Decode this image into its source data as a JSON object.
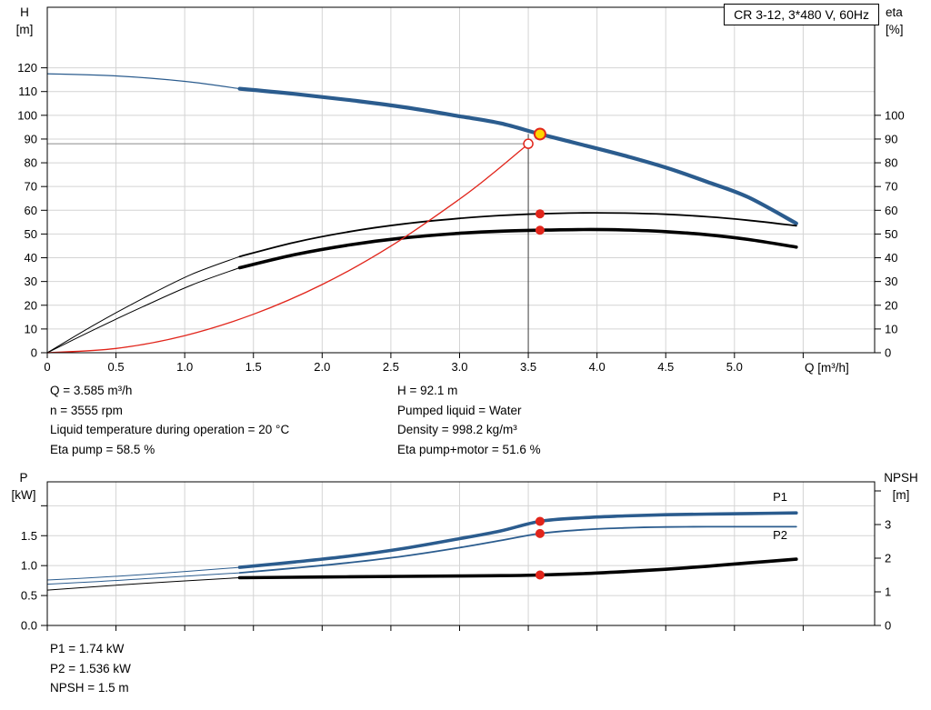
{
  "header": {
    "title_box": "CR 3-12, 3*480 V, 60Hz"
  },
  "colors": {
    "blue": "#2b5c8e",
    "red": "#e1251b",
    "black": "#000000",
    "grid": "#d4d4d4",
    "frame": "#000000",
    "guide_gray": "#8a8a8a",
    "guide_dark": "#404040",
    "yellow": "#ffd500",
    "white": "#ffffff"
  },
  "readouts_top": {
    "left": [
      "Q = 3.585 m³/h",
      "n = 3555 rpm",
      "Liquid temperature during operation = 20 °C",
      "Eta pump = 58.5 %"
    ],
    "right": [
      "H = 92.1 m",
      "Pumped liquid = Water",
      "Density = 998.2 kg/m³",
      "Eta pump+motor = 51.6 %"
    ]
  },
  "readouts_bottom": [
    "P1 = 1.74 kW",
    "P2 = 1.536 kW",
    "NPSH = 1.5 m"
  ],
  "chart_data": [
    {
      "name": "hq-eta-chart",
      "type": "line",
      "x_axis": {
        "title": "Q [m³/h]",
        "min": 0,
        "max": 6.02,
        "ticks": [
          {
            "v": 0,
            "label": "0"
          },
          {
            "v": 0.5,
            "label": "0.5"
          },
          {
            "v": 1,
            "label": "1.0"
          },
          {
            "v": 1.5,
            "label": "1.5"
          },
          {
            "v": 2,
            "label": "2.0"
          },
          {
            "v": 2.5,
            "label": "2.5"
          },
          {
            "v": 3,
            "label": "3.0"
          },
          {
            "v": 3.5,
            "label": "3.5"
          },
          {
            "v": 4,
            "label": "4.0"
          },
          {
            "v": 4.5,
            "label": "4.5"
          },
          {
            "v": 5,
            "label": "5.0"
          },
          {
            "v": 5.5,
            "label": ""
          }
        ]
      },
      "y_left": {
        "title_1": "H",
        "title_2": "[m]",
        "min": 0,
        "max": 145.5,
        "ticks": [
          {
            "v": 0,
            "label": "0"
          },
          {
            "v": 10,
            "label": "10"
          },
          {
            "v": 20,
            "label": "20"
          },
          {
            "v": 30,
            "label": "30"
          },
          {
            "v": 40,
            "label": "40"
          },
          {
            "v": 50,
            "label": "50"
          },
          {
            "v": 60,
            "label": "60"
          },
          {
            "v": 70,
            "label": "70"
          },
          {
            "v": 80,
            "label": "80"
          },
          {
            "v": 90,
            "label": "90"
          },
          {
            "v": 100,
            "label": "100"
          },
          {
            "v": 110,
            "label": "110"
          },
          {
            "v": 120,
            "label": "120"
          }
        ]
      },
      "y_right": {
        "title_1": "eta",
        "title_2": "[%]",
        "min": 0,
        "max": 145.5,
        "ticks": [
          {
            "v": 0,
            "label": "0"
          },
          {
            "v": 10,
            "label": "10"
          },
          {
            "v": 20,
            "label": "20"
          },
          {
            "v": 30,
            "label": "30"
          },
          {
            "v": 40,
            "label": "40"
          },
          {
            "v": 50,
            "label": "50"
          },
          {
            "v": 60,
            "label": "60"
          },
          {
            "v": 70,
            "label": "70"
          },
          {
            "v": 80,
            "label": "80"
          },
          {
            "v": 90,
            "label": "90"
          },
          {
            "v": 100,
            "label": "100"
          }
        ]
      },
      "guide_lines": [
        {
          "name": "duty-h-guide-line",
          "q1": 0,
          "v1": 88,
          "q2": 3.5,
          "v2": 88,
          "color": "guide_gray",
          "width": 1
        },
        {
          "name": "duty-q-guide-line",
          "q1": 3.5,
          "v1": 0,
          "q2": 3.5,
          "v2": 92.1,
          "color": "guide_dark",
          "width": 1
        }
      ],
      "series": [
        {
          "name": "hq-curve-extrapolated",
          "color": "blue",
          "width": 1.2,
          "axis": "left",
          "points": [
            [
              0,
              117.5
            ],
            [
              0.5,
              116.6
            ],
            [
              1.0,
              114.3
            ],
            [
              1.4,
              111.2
            ]
          ]
        },
        {
          "name": "hq-curve",
          "color": "blue",
          "width": 4.2,
          "axis": "left",
          "points": [
            [
              1.4,
              111.2
            ],
            [
              1.8,
              109
            ],
            [
              2.2,
              106.4
            ],
            [
              2.6,
              103.4
            ],
            [
              3.0,
              99.6
            ],
            [
              3.3,
              96.6
            ],
            [
              3.585,
              92.1
            ],
            [
              3.9,
              87.5
            ],
            [
              4.2,
              83
            ],
            [
              4.5,
              78
            ],
            [
              4.8,
              72
            ],
            [
              5.1,
              65.5
            ],
            [
              5.45,
              54.5
            ]
          ]
        },
        {
          "name": "eta-pump-curve-extrapolated",
          "color": "black",
          "width": 1,
          "axis": "left",
          "points": [
            [
              0,
              0
            ],
            [
              0.35,
              12
            ],
            [
              0.7,
              23
            ],
            [
              1.05,
              33
            ],
            [
              1.4,
              40.5
            ]
          ]
        },
        {
          "name": "eta-pump-curve",
          "color": "black",
          "width": 1.8,
          "axis": "left",
          "points": [
            [
              1.4,
              40.5
            ],
            [
              1.8,
              46.5
            ],
            [
              2.2,
              51
            ],
            [
              2.6,
              54.3
            ],
            [
              3.0,
              56.6
            ],
            [
              3.3,
              57.8
            ],
            [
              3.585,
              58.5
            ],
            [
              3.9,
              58.9
            ],
            [
              4.2,
              58.8
            ],
            [
              4.5,
              58.3
            ],
            [
              4.8,
              57.3
            ],
            [
              5.1,
              55.8
            ],
            [
              5.45,
              53.5
            ]
          ]
        },
        {
          "name": "eta-pump-motor-curve-extrapolated",
          "color": "black",
          "width": 1,
          "axis": "left",
          "points": [
            [
              0,
              0
            ],
            [
              0.35,
              10
            ],
            [
              0.7,
              19.5
            ],
            [
              1.05,
              28.5
            ],
            [
              1.4,
              35.8
            ]
          ]
        },
        {
          "name": "eta-pump-motor-curve",
          "color": "black",
          "width": 3.6,
          "axis": "left",
          "points": [
            [
              1.4,
              35.8
            ],
            [
              1.8,
              41.3
            ],
            [
              2.2,
              45.4
            ],
            [
              2.6,
              48.4
            ],
            [
              3.0,
              50.3
            ],
            [
              3.3,
              51.2
            ],
            [
              3.585,
              51.6
            ],
            [
              3.9,
              51.9
            ],
            [
              4.2,
              51.7
            ],
            [
              4.5,
              51
            ],
            [
              4.8,
              49.7
            ],
            [
              5.1,
              47.7
            ],
            [
              5.45,
              44.5
            ]
          ]
        },
        {
          "name": "system-curve",
          "color": "red",
          "width": 1.3,
          "axis": "left",
          "points": [
            [
              0,
              0
            ],
            [
              0.5,
              1.8
            ],
            [
              1.0,
              7.2
            ],
            [
              1.5,
              16.2
            ],
            [
              2.0,
              28.7
            ],
            [
              2.5,
              44.9
            ],
            [
              3.0,
              64.7
            ],
            [
              3.25,
              75.9
            ],
            [
              3.5,
              88
            ]
          ]
        }
      ],
      "markers": [
        {
          "name": "requested-duty-marker",
          "q": 3.5,
          "v": 88,
          "axis": "left",
          "r": 5,
          "fill": "white",
          "stroke": "red",
          "stroke_width": 1.5
        },
        {
          "name": "eta-pump-duty-dot",
          "q": 3.585,
          "v": 58.5,
          "axis": "left",
          "r": 5,
          "fill": "red"
        },
        {
          "name": "eta-pump-motor-duty-dot",
          "q": 3.585,
          "v": 51.6,
          "axis": "left",
          "r": 5,
          "fill": "red"
        },
        {
          "name": "duty-point-marker",
          "q": 3.585,
          "v": 92.1,
          "axis": "left",
          "r": 6,
          "fill": "yellow",
          "stroke": "red",
          "stroke_width": 2
        }
      ],
      "labels": []
    },
    {
      "name": "power-npsh-chart",
      "type": "line",
      "x_axis": {
        "title": "",
        "min": 0,
        "max": 6.02,
        "ticks": [
          {
            "v": 0,
            "label": ""
          },
          {
            "v": 0.5,
            "label": ""
          },
          {
            "v": 1,
            "label": ""
          },
          {
            "v": 1.5,
            "label": ""
          },
          {
            "v": 2,
            "label": ""
          },
          {
            "v": 2.5,
            "label": ""
          },
          {
            "v": 3,
            "label": ""
          },
          {
            "v": 3.5,
            "label": ""
          },
          {
            "v": 4,
            "label": ""
          },
          {
            "v": 4.5,
            "label": ""
          },
          {
            "v": 5,
            "label": ""
          },
          {
            "v": 5.5,
            "label": ""
          }
        ]
      },
      "y_left": {
        "title_1": "P",
        "title_2": "[kW]",
        "min": 0,
        "max": 2.4,
        "ticks": [
          {
            "v": 0,
            "label": "0.0"
          },
          {
            "v": 0.5,
            "label": "0.5"
          },
          {
            "v": 1,
            "label": "1.0"
          },
          {
            "v": 1.5,
            "label": "1.5"
          },
          {
            "v": 2,
            "label": ""
          }
        ]
      },
      "y_right": {
        "title_1": "NPSH",
        "title_2": "[m]",
        "min": 0,
        "max": 4.27,
        "ticks": [
          {
            "v": 0,
            "label": "0"
          },
          {
            "v": 1,
            "label": "1"
          },
          {
            "v": 2,
            "label": "2"
          },
          {
            "v": 3,
            "label": "3"
          },
          {
            "v": 4,
            "label": ""
          }
        ]
      },
      "guide_lines": [],
      "series": [
        {
          "name": "p1-curve-extrapolated",
          "color": "blue",
          "width": 1,
          "axis": "left",
          "points": [
            [
              0,
              0.76
            ],
            [
              0.35,
              0.8
            ],
            [
              0.7,
              0.85
            ],
            [
              1.05,
              0.91
            ],
            [
              1.4,
              0.97
            ]
          ]
        },
        {
          "name": "p1-curve",
          "color": "blue",
          "width": 3.6,
          "axis": "left",
          "points": [
            [
              1.4,
              0.97
            ],
            [
              1.8,
              1.06
            ],
            [
              2.2,
              1.16
            ],
            [
              2.6,
              1.29
            ],
            [
              3.0,
              1.45
            ],
            [
              3.3,
              1.58
            ],
            [
              3.585,
              1.74
            ],
            [
              3.9,
              1.8
            ],
            [
              4.2,
              1.83
            ],
            [
              4.5,
              1.85
            ],
            [
              4.8,
              1.86
            ],
            [
              5.1,
              1.87
            ],
            [
              5.45,
              1.88
            ]
          ]
        },
        {
          "name": "p2-curve-extrapolated",
          "color": "blue",
          "width": 1,
          "axis": "left",
          "points": [
            [
              0,
              0.69
            ],
            [
              0.35,
              0.73
            ],
            [
              0.7,
              0.78
            ],
            [
              1.05,
              0.83
            ],
            [
              1.4,
              0.88
            ]
          ]
        },
        {
          "name": "p2-curve",
          "color": "blue",
          "width": 1.8,
          "axis": "left",
          "points": [
            [
              1.4,
              0.88
            ],
            [
              1.8,
              0.96
            ],
            [
              2.2,
              1.05
            ],
            [
              2.6,
              1.16
            ],
            [
              3.0,
              1.3
            ],
            [
              3.3,
              1.42
            ],
            [
              3.585,
              1.536
            ],
            [
              3.9,
              1.6
            ],
            [
              4.2,
              1.63
            ],
            [
              4.5,
              1.645
            ],
            [
              4.8,
              1.65
            ],
            [
              5.1,
              1.65
            ],
            [
              5.45,
              1.65
            ]
          ]
        },
        {
          "name": "npsh-curve-extrapolated",
          "color": "black",
          "width": 1,
          "axis": "right",
          "points": [
            [
              0,
              1.05
            ],
            [
              0.7,
              1.25
            ],
            [
              1.4,
              1.42
            ]
          ]
        },
        {
          "name": "npsh-curve",
          "color": "black",
          "width": 3.6,
          "axis": "right",
          "points": [
            [
              1.4,
              1.42
            ],
            [
              2.0,
              1.44
            ],
            [
              2.6,
              1.46
            ],
            [
              3.0,
              1.47
            ],
            [
              3.3,
              1.48
            ],
            [
              3.585,
              1.5
            ],
            [
              3.9,
              1.54
            ],
            [
              4.2,
              1.6
            ],
            [
              4.5,
              1.67
            ],
            [
              4.8,
              1.76
            ],
            [
              5.1,
              1.86
            ],
            [
              5.45,
              1.97
            ]
          ]
        }
      ],
      "markers": [
        {
          "name": "p1-duty-dot",
          "q": 3.585,
          "v": 1.74,
          "axis": "left",
          "r": 5,
          "fill": "red"
        },
        {
          "name": "p2-duty-dot",
          "q": 3.585,
          "v": 1.536,
          "axis": "left",
          "r": 5,
          "fill": "red"
        },
        {
          "name": "npsh-duty-dot",
          "q": 3.585,
          "v": 1.5,
          "axis": "right",
          "r": 5,
          "fill": "red"
        }
      ],
      "labels": [
        {
          "name": "p1-curve-label",
          "text": "P1",
          "q": 5.28,
          "v": 2.08,
          "axis": "left",
          "color": "blue"
        },
        {
          "name": "p2-curve-label",
          "text": "P2",
          "q": 5.28,
          "v": 1.44,
          "axis": "left",
          "color": "blue"
        }
      ]
    }
  ]
}
